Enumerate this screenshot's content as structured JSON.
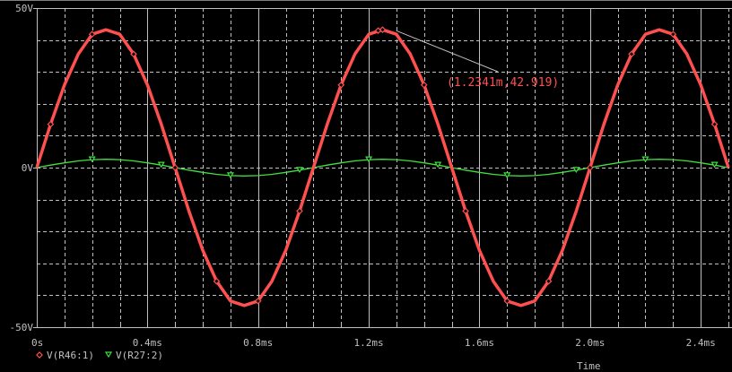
{
  "chart_data": {
    "type": "line",
    "title": "",
    "xlabel": "Time",
    "ylabel": "",
    "xlim": [
      0,
      2.5
    ],
    "ylim": [
      -50,
      50
    ],
    "x_unit": "ms",
    "grid": true,
    "legend_position": "bottom-left",
    "x_tick_labels": [
      "0s",
      "0.4ms",
      "0.8ms",
      "1.2ms",
      "1.6ms",
      "2.0ms",
      "2.4ms"
    ],
    "x_ticks": [
      0,
      0.4,
      0.8,
      1.2,
      1.6,
      2.0,
      2.4
    ],
    "y_tick_labels": [
      "50V",
      "0V",
      "-50V"
    ],
    "y_ticks": [
      50,
      0,
      -50
    ],
    "x": [
      0,
      0.05,
      0.1,
      0.15,
      0.2,
      0.25,
      0.3,
      0.35,
      0.4,
      0.45,
      0.5,
      0.55,
      0.6,
      0.65,
      0.7,
      0.75,
      0.8,
      0.85,
      0.9,
      0.95,
      1.0,
      1.05,
      1.1,
      1.15,
      1.2,
      1.25,
      1.3,
      1.35,
      1.4,
      1.45,
      1.5,
      1.55,
      1.6,
      1.65,
      1.7,
      1.75,
      1.8,
      1.85,
      1.9,
      1.95,
      2.0,
      2.05,
      2.1,
      2.15,
      2.2,
      2.25,
      2.3,
      2.35,
      2.4,
      2.45,
      2.5
    ],
    "series": [
      {
        "name": "V(R46:1)",
        "color": "#ff5050",
        "marker": "diamond",
        "values": [
          0,
          13.6,
          25.9,
          35.6,
          41.8,
          43.2,
          41.8,
          35.6,
          25.9,
          13.6,
          0,
          -13.6,
          -25.9,
          -35.6,
          -41.8,
          -43.2,
          -41.8,
          -35.6,
          -25.9,
          -13.6,
          0,
          13.6,
          25.9,
          35.6,
          41.8,
          43.2,
          41.8,
          35.6,
          25.9,
          13.6,
          0,
          -13.6,
          -25.9,
          -35.6,
          -41.8,
          -43.2,
          -41.8,
          -35.6,
          -25.9,
          -13.6,
          0,
          13.6,
          25.9,
          35.6,
          41.8,
          43.2,
          41.8,
          35.6,
          25.9,
          13.6,
          0
        ]
      },
      {
        "name": "V(R27:2)",
        "color": "#40e040",
        "marker": "triangle-down",
        "values": [
          0,
          0.8,
          1.5,
          2.1,
          2.5,
          2.6,
          2.5,
          2.1,
          1.5,
          0.8,
          0,
          -0.8,
          -1.5,
          -2.1,
          -2.5,
          -2.6,
          -2.5,
          -2.1,
          -1.5,
          -0.8,
          0,
          0.8,
          1.5,
          2.1,
          2.5,
          2.6,
          2.5,
          2.1,
          1.5,
          0.8,
          0,
          -0.8,
          -1.5,
          -2.1,
          -2.5,
          -2.6,
          -2.5,
          -2.1,
          -1.5,
          -0.8,
          0,
          0.8,
          1.5,
          2.1,
          2.5,
          2.6,
          2.5,
          2.1,
          1.5,
          0.8,
          0
        ]
      }
    ],
    "annotations": [
      {
        "text": "(1.2341m,42.919)",
        "x": 1.2341,
        "y": 42.919,
        "color": "#ff5050"
      }
    ]
  },
  "colors": {
    "background": "#000000",
    "grid": "#c0c0c0",
    "axis_text": "#c0c0c0",
    "leader": "#c0c0c0"
  }
}
